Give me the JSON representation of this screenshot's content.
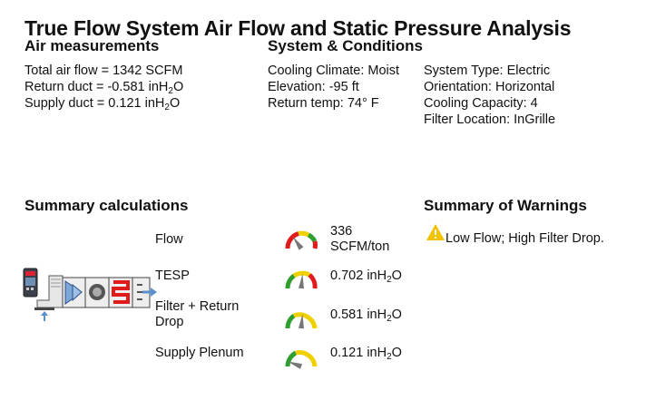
{
  "title": "True Flow System Air Flow and Static Pressure Analysis",
  "air_measurements": {
    "heading": "Air measurements",
    "total_airflow": "Total air flow = 1342 SCFM",
    "return_duct_prefix": "Return duct = -0.581 inH",
    "return_duct_sub": "2",
    "return_duct_suffix": "O",
    "supply_duct_prefix": "Supply duct = 0.121 inH",
    "supply_duct_sub": "2",
    "supply_duct_suffix": "O"
  },
  "system_conditions": {
    "heading": "System & Conditions",
    "col1": [
      "Cooling Climate: Moist",
      "Elevation: -95 ft",
      "Return temp: 74° F"
    ],
    "col2": [
      "System Type: Electric",
      "Orientation: Horizontal",
      "Cooling Capacity: 4",
      "Filter Location: InGrille"
    ]
  },
  "summary_calculations": {
    "heading": "Summary calculations",
    "rows": [
      {
        "label": "Flow",
        "value_prefix": "336",
        "value_line2": "SCFM/ton",
        "value_sub": "",
        "value_suffix": "",
        "needle_angle": -35,
        "gauge": "flow"
      },
      {
        "label": "TESP",
        "value_prefix": "0.702 inH",
        "value_line2": "",
        "value_sub": "2",
        "value_suffix": "O",
        "needle_angle": 5,
        "gauge": "tesp"
      },
      {
        "label": "Filter + Return Drop",
        "value_prefix": "0.581 inH",
        "value_line2": "",
        "value_sub": "2",
        "value_suffix": "O",
        "needle_angle": 5,
        "gauge": "filter"
      },
      {
        "label": "Supply Plenum",
        "value_prefix": "0.121 inH",
        "value_line2": "",
        "value_sub": "2",
        "value_suffix": "O",
        "needle_angle": -70,
        "gauge": "supply"
      }
    ]
  },
  "summary_warnings": {
    "heading": "Summary of Warnings",
    "items": [
      "Low Flow; High Filter Drop."
    ],
    "icon": "warning-triangle-icon",
    "icon_color": "#f2c200"
  },
  "colors": {
    "red": "#e01b1b",
    "yellow": "#f0d000",
    "green": "#2e9e2e",
    "needle": "#777777",
    "arrow_blue": "#5b8fd0"
  }
}
